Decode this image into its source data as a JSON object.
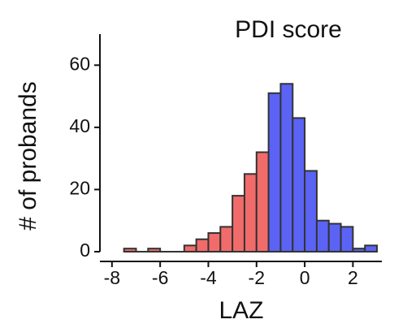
{
  "chart_data": {
    "type": "histogram",
    "title": "PDI score",
    "x_label": "LAZ",
    "y_label": "# of probands",
    "bins": [
      -7.5,
      -7,
      -6.5,
      -6,
      -5.5,
      -5,
      -4.5,
      -4,
      -3.5,
      -3,
      -2.5,
      -2,
      -1.5,
      -1,
      -0.5,
      0,
      0.5,
      1,
      1.5,
      2,
      2.5,
      3
    ],
    "values": [
      1,
      0,
      1,
      0,
      0,
      2,
      4,
      6,
      8,
      18,
      25,
      32,
      51,
      54,
      43,
      26,
      10,
      9,
      8,
      1,
      2
    ],
    "colors": [
      "#f26b6b",
      "#f26b6b",
      "#f26b6b",
      "#f26b6b",
      "#f26b6b",
      "#f26b6b",
      "#f26b6b",
      "#f26b6b",
      "#f26b6b",
      "#f26b6b",
      "#f26b6b",
      "#f26b6b",
      "#5b63f5",
      "#5b63f5",
      "#5b63f5",
      "#5b63f5",
      "#5b63f5",
      "#5b63f5",
      "#5b63f5",
      "#5b63f5",
      "#5b63f5"
    ],
    "xlim": [
      -8.5,
      3.2
    ],
    "ylim": [
      0,
      70
    ],
    "xticks": [
      -8,
      -6,
      -4,
      -2,
      0,
      2
    ],
    "yticks": [
      0,
      20,
      40,
      60
    ]
  }
}
